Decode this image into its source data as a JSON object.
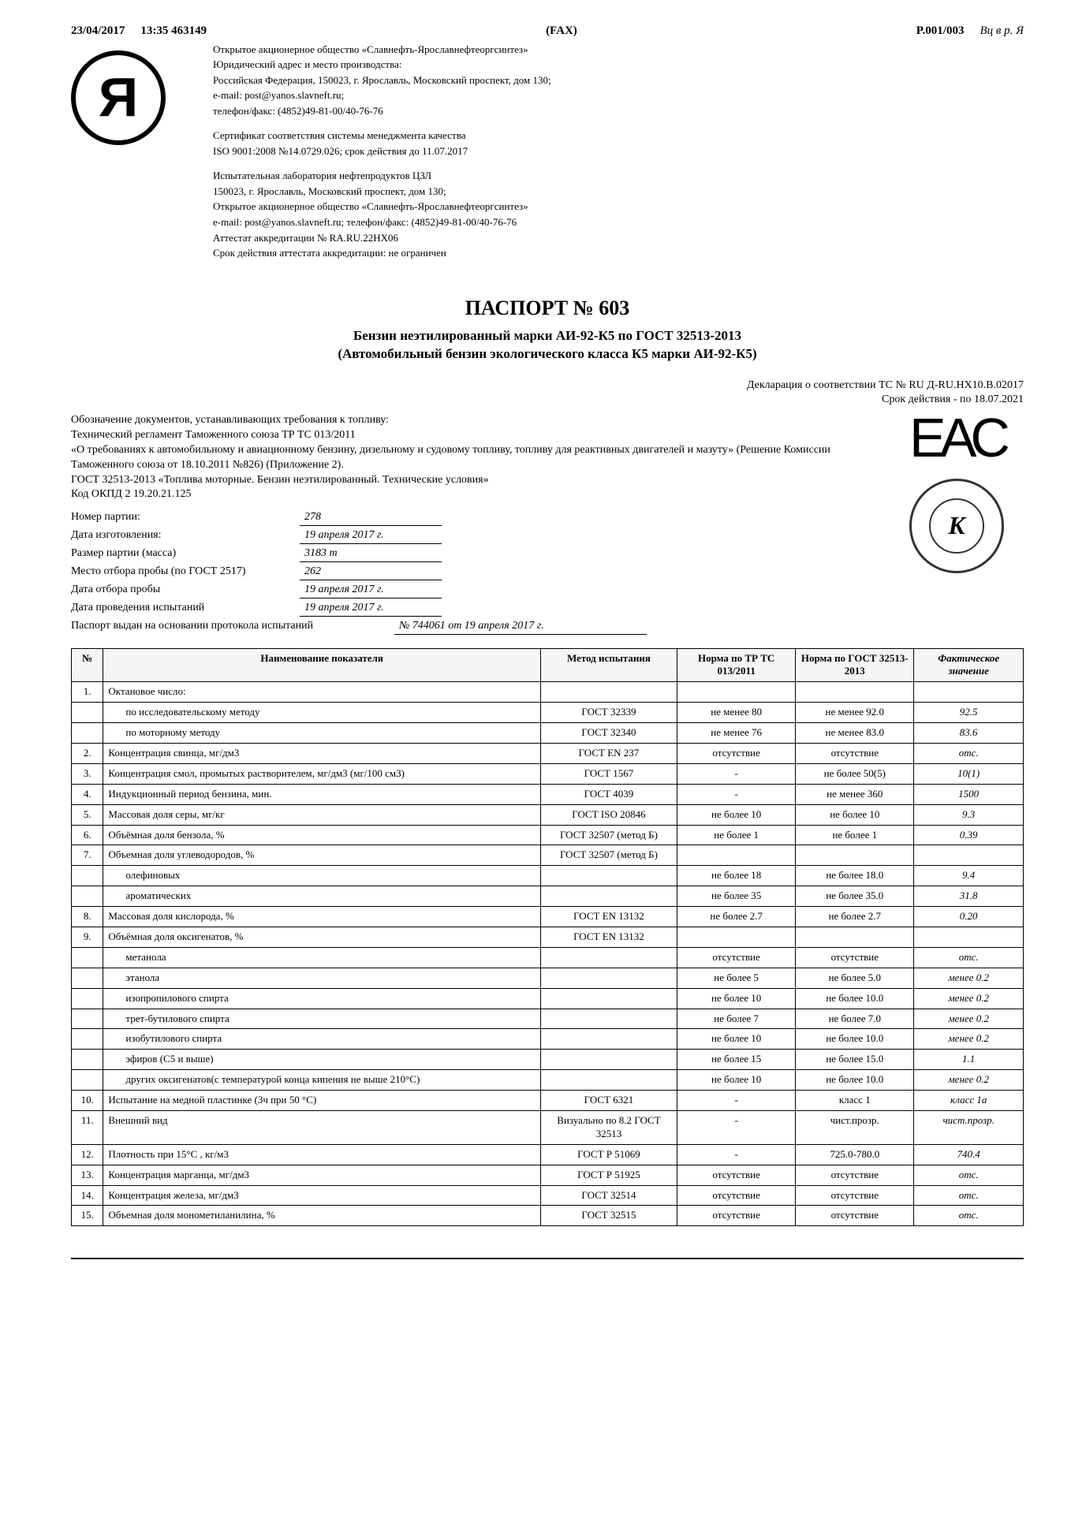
{
  "fax": {
    "date": "23/04/2017",
    "time": "13:35 463149",
    "label": "(FAX)",
    "page": "P.001/003",
    "note": "Вц в р. Я"
  },
  "company": {
    "line1": "Открытое акционерное общество «Славнефть-Ярославнефтеоргсинтез»",
    "line2": "Юридический адрес и место производства:",
    "line3": "Российская Федерация, 150023, г. Ярославль, Московский проспект, дом 130;",
    "line4": "e-mail: post@yanos.slavneft.ru;",
    "line5": "телефон/факс: (4852)49-81-00/40-76-76"
  },
  "cert": {
    "line1": "Сертификат соответствия системы менеджмента качества",
    "line2": "ISO 9001:2008 №14.0729.026; срок действия до 11.07.2017"
  },
  "lab": {
    "line1": "Испытательная лаборатория нефтепродуктов ЦЗЛ",
    "line2": "150023, г. Ярославль, Московский проспект, дом 130;",
    "line3": "Открытое акционерное общество «Славнефть-Ярославнефтеоргсинтез»",
    "line4": "e-mail: post@yanos.slavneft.ru; телефон/факс: (4852)49-81-00/40-76-76",
    "line5": "Аттестат аккредитации № RA.RU.22HX06",
    "line6": "Срок действия аттестата аккредитации: не ограничен"
  },
  "title": {
    "main": "ПАСПОРТ № 603",
    "product": "Бензин неэтилированный марки АИ-92-К5 по ГОСТ 32513-2013",
    "product_sub": "(Автомобильный бензин экологического класса К5 марки АИ-92-К5)"
  },
  "declaration": {
    "line1": "Декларация о соответствии ТС № RU Д-RU.HX10.B.02017",
    "line2": "Срок действия - по 18.07.2021"
  },
  "doc_refs": {
    "l1": "Обозначение документов, устанавливающих требования к топливу:",
    "l2": "Технический регламент Таможенного союза ТР ТС 013/2011",
    "l3": "«О требованиях к автомобильному и авиационному бензину, дизельному и судовому топливу, топливу для реактивных двигателей и мазуту» (Решение Комиссии Таможенного союза от 18.10.2011 №826) (Приложение 2).",
    "l4": "ГОСТ 32513-2013 «Топлива моторные. Бензин неэтилированный. Технические условия»",
    "l5": "Код ОКПД 2 19.20.21.125"
  },
  "fields": {
    "batch_no_label": "Номер партии:",
    "batch_no": "278",
    "mfg_date_label": "Дата изготовления:",
    "mfg_date": "19 апреля 2017 г.",
    "batch_size_label": "Размер партии (масса)",
    "batch_size": "3183 т",
    "sample_place_label": "Место отбора пробы (по ГОСТ 2517)",
    "sample_place": "262",
    "sample_date_label": "Дата отбора пробы",
    "sample_date": "19 апреля 2017 г.",
    "test_date_label": "Дата проведения испытаний",
    "test_date": "19 апреля 2017 г.",
    "protocol_label": "Паспорт выдан на основании протокола испытаний",
    "protocol": "№ 744061 от 19 апреля 2017 г."
  },
  "table": {
    "headers": {
      "num": "№",
      "name": "Наименование показателя",
      "method": "Метод испытания",
      "norm1": "Норма по ТР ТС 013/2011",
      "norm2": "Норма по ГОСТ 32513-2013",
      "fact": "Фактическое значение"
    },
    "rows": [
      {
        "n": "1.",
        "name": "Октановое число:",
        "method": "",
        "norm1": "",
        "norm2": "",
        "fact": ""
      },
      {
        "n": "",
        "name": "по исследовательскому методу",
        "indent": 1,
        "method": "ГОСТ 32339",
        "norm1": "не менее 80",
        "norm2": "не менее 92.0",
        "fact": "92.5"
      },
      {
        "n": "",
        "name": "по моторному методу",
        "indent": 1,
        "method": "ГОСТ 32340",
        "norm1": "не менее 76",
        "norm2": "не менее 83.0",
        "fact": "83.6"
      },
      {
        "n": "2.",
        "name": "Концентрация свинца, мг/дм3",
        "method": "ГОСТ EN 237",
        "norm1": "отсутствие",
        "norm2": "отсутствие",
        "fact": "отс."
      },
      {
        "n": "3.",
        "name": "Концентрация смол, промытых растворителем, мг/дм3 (мг/100 см3)",
        "method": "ГОСТ 1567",
        "norm1": "-",
        "norm2": "не более 50(5)",
        "fact": "10(1)"
      },
      {
        "n": "4.",
        "name": "Индукционный период бензина, мин.",
        "method": "ГОСТ 4039",
        "norm1": "-",
        "norm2": "не менее 360",
        "fact": "1500"
      },
      {
        "n": "5.",
        "name": "Массовая доля серы, мг/кг",
        "method": "ГОСТ ISO 20846",
        "norm1": "не более 10",
        "norm2": "не более 10",
        "fact": "9.3"
      },
      {
        "n": "6.",
        "name": "Объёмная доля бензола, %",
        "method": "ГОСТ 32507 (метод Б)",
        "norm1": "не более 1",
        "norm2": "не более 1",
        "fact": "0.39"
      },
      {
        "n": "7.",
        "name": "Объемная доля углеводородов, %",
        "method": "ГОСТ 32507 (метод Б)",
        "norm1": "",
        "norm2": "",
        "fact": ""
      },
      {
        "n": "",
        "name": "олефиновых",
        "indent": 1,
        "method": "",
        "norm1": "не более 18",
        "norm2": "не более 18.0",
        "fact": "9.4"
      },
      {
        "n": "",
        "name": "ароматических",
        "indent": 1,
        "method": "",
        "norm1": "не более 35",
        "norm2": "не более 35.0",
        "fact": "31.8"
      },
      {
        "n": "8.",
        "name": "Массовая доля кислорода, %",
        "method": "ГОСТ EN 13132",
        "norm1": "не более 2.7",
        "norm2": "не более 2.7",
        "fact": "0.20"
      },
      {
        "n": "9.",
        "name": "Объёмная доля оксигенатов, %",
        "method": "ГОСТ EN 13132",
        "norm1": "",
        "norm2": "",
        "fact": ""
      },
      {
        "n": "",
        "name": "метанола",
        "indent": 1,
        "method": "",
        "norm1": "отсутствие",
        "norm2": "отсутствие",
        "fact": "отс."
      },
      {
        "n": "",
        "name": "этанола",
        "indent": 1,
        "method": "",
        "norm1": "не более 5",
        "norm2": "не более 5.0",
        "fact": "менее 0.2"
      },
      {
        "n": "",
        "name": "изопропилового спирта",
        "indent": 1,
        "method": "",
        "norm1": "не более 10",
        "norm2": "не более 10.0",
        "fact": "менее 0.2"
      },
      {
        "n": "",
        "name": "трет-бутилового спирта",
        "indent": 1,
        "method": "",
        "norm1": "не более 7",
        "norm2": "не более 7.0",
        "fact": "менее 0.2"
      },
      {
        "n": "",
        "name": "изобутилового спирта",
        "indent": 1,
        "method": "",
        "norm1": "не более 10",
        "norm2": "не более 10.0",
        "fact": "менее 0.2"
      },
      {
        "n": "",
        "name": "эфиров (С5 и выше)",
        "indent": 1,
        "method": "",
        "norm1": "не более 15",
        "norm2": "не более 15.0",
        "fact": "1.1"
      },
      {
        "n": "",
        "name": "других оксигенатов(с температурой конца кипения не выше 210°С)",
        "indent": 1,
        "method": "",
        "norm1": "не более 10",
        "norm2": "не более 10.0",
        "fact": "менее 0.2"
      },
      {
        "n": "10.",
        "name": "Испытание на медной пластинке (3ч при 50 °С)",
        "method": "ГОСТ 6321",
        "norm1": "-",
        "norm2": "класс 1",
        "fact": "класс 1а"
      },
      {
        "n": "11.",
        "name": "Внешний вид",
        "method": "Визуально по 8.2 ГОСТ 32513",
        "norm1": "-",
        "norm2": "чист.прозр.",
        "fact": "чист.прозр."
      },
      {
        "n": "12.",
        "name": "Плотность при 15°С , кг/м3",
        "method": "ГОСТ Р 51069",
        "norm1": "-",
        "norm2": "725.0-780.0",
        "fact": "740.4"
      },
      {
        "n": "13.",
        "name": "Концентрация марганца, мг/дм3",
        "method": "ГОСТ Р 51925",
        "norm1": "отсутствие",
        "norm2": "отсутствие",
        "fact": "отс."
      },
      {
        "n": "14.",
        "name": "Концентрация железа, мг/дм3",
        "method": "ГОСТ 32514",
        "norm1": "отсутствие",
        "norm2": "отсутствие",
        "fact": "отс."
      },
      {
        "n": "15.",
        "name": "Объемная доля монометиланилина, %",
        "method": "ГОСТ 32515",
        "norm1": "отсутствие",
        "norm2": "отсутствие",
        "fact": "отс."
      }
    ]
  },
  "logo_letter": "Я",
  "stamp_letter": "K"
}
